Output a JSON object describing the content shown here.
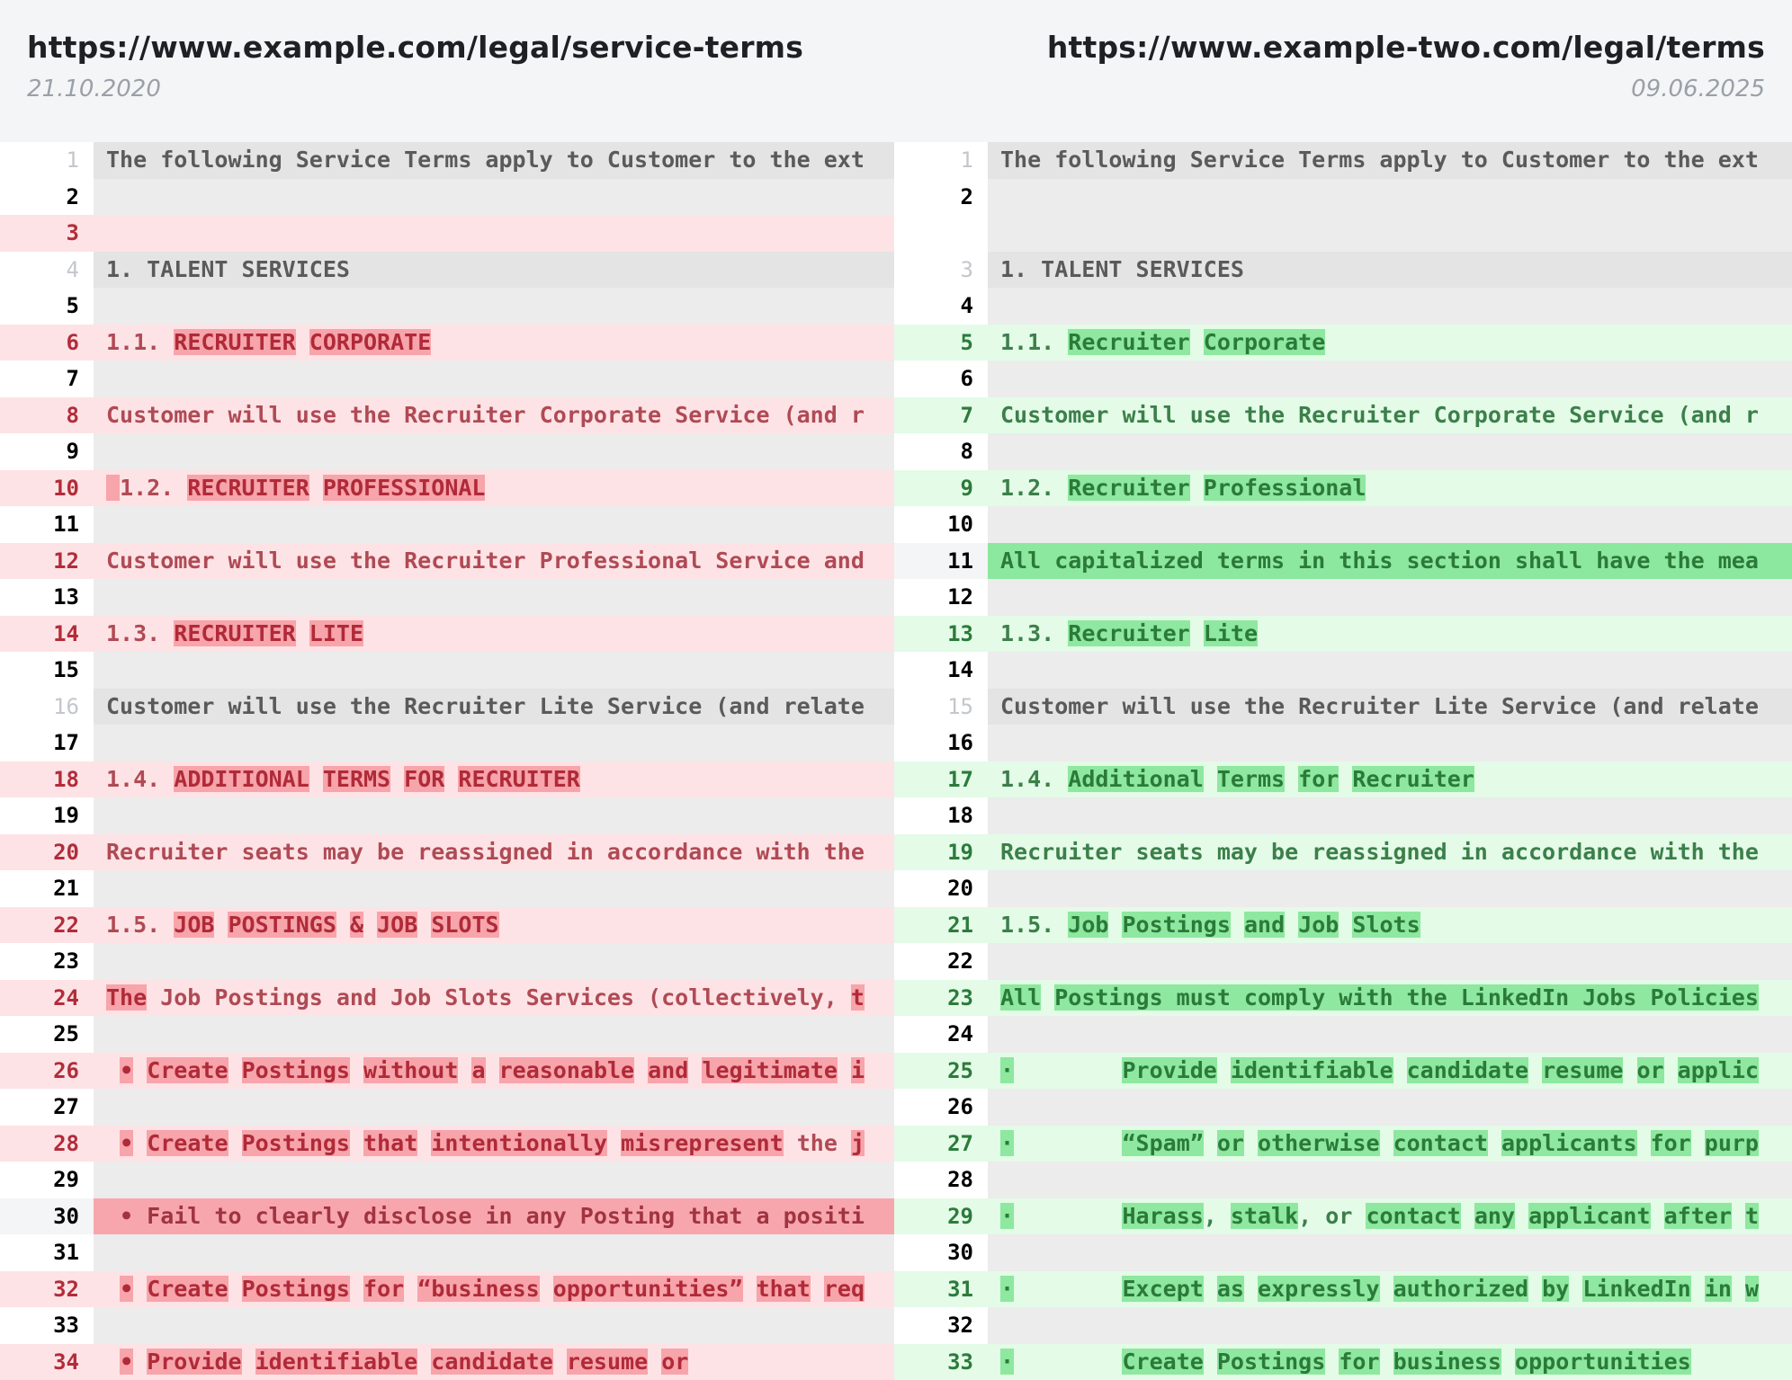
{
  "left": {
    "url": "https://www.example.com/legal/service-terms",
    "date": "21.10.2020",
    "rows": [
      {
        "n": "1",
        "kind": "same",
        "segs": [
          {
            "t": "The following Service Terms apply to Customer to the ext"
          }
        ]
      },
      {
        "n": "2",
        "kind": "empty",
        "segs": []
      },
      {
        "n": "3",
        "kind": "delempty",
        "segs": []
      },
      {
        "n": "4",
        "kind": "same",
        "segs": [
          {
            "t": "1. TALENT SERVICES"
          }
        ]
      },
      {
        "n": "5",
        "kind": "empty",
        "segs": []
      },
      {
        "n": "6",
        "kind": "del",
        "segs": [
          {
            "t": "1.1. "
          },
          {
            "t": "RECRUITER",
            "h": 1
          },
          {
            "t": " "
          },
          {
            "t": "CORPORATE",
            "h": 1
          }
        ]
      },
      {
        "n": "7",
        "kind": "empty",
        "segs": []
      },
      {
        "n": "8",
        "kind": "del",
        "segs": [
          {
            "t": "Customer will use the Recruiter Corporate Service (and r"
          }
        ]
      },
      {
        "n": "9",
        "kind": "empty",
        "segs": []
      },
      {
        "n": "10",
        "kind": "del",
        "segs": [
          {
            "t": " ",
            "h": 1
          },
          {
            "t": "1.2. "
          },
          {
            "t": "RECRUITER",
            "h": 1
          },
          {
            "t": " "
          },
          {
            "t": "PROFESSIONAL",
            "h": 1
          }
        ]
      },
      {
        "n": "11",
        "kind": "empty",
        "segs": []
      },
      {
        "n": "12",
        "kind": "del",
        "segs": [
          {
            "t": "Customer will use the Recruiter Professional Service and"
          }
        ]
      },
      {
        "n": "13",
        "kind": "empty",
        "segs": []
      },
      {
        "n": "14",
        "kind": "del",
        "segs": [
          {
            "t": "1.3. "
          },
          {
            "t": "RECRUITER",
            "h": 1
          },
          {
            "t": " "
          },
          {
            "t": "LITE",
            "h": 1
          }
        ]
      },
      {
        "n": "15",
        "kind": "empty",
        "segs": []
      },
      {
        "n": "16",
        "kind": "same",
        "segs": [
          {
            "t": "Customer will use the Recruiter Lite Service (and relate"
          }
        ]
      },
      {
        "n": "17",
        "kind": "empty",
        "segs": []
      },
      {
        "n": "18",
        "kind": "del",
        "segs": [
          {
            "t": "1.4. "
          },
          {
            "t": "ADDITIONAL",
            "h": 1
          },
          {
            "t": " "
          },
          {
            "t": "TERMS",
            "h": 1
          },
          {
            "t": " "
          },
          {
            "t": "FOR",
            "h": 1
          },
          {
            "t": " "
          },
          {
            "t": "RECRUITER",
            "h": 1
          }
        ]
      },
      {
        "n": "19",
        "kind": "empty",
        "segs": []
      },
      {
        "n": "20",
        "kind": "del",
        "segs": [
          {
            "t": "Recruiter seats may be reassigned in accordance with the"
          }
        ]
      },
      {
        "n": "21",
        "kind": "empty",
        "segs": []
      },
      {
        "n": "22",
        "kind": "del",
        "segs": [
          {
            "t": "1.5. "
          },
          {
            "t": "JOB",
            "h": 1
          },
          {
            "t": " "
          },
          {
            "t": "POSTINGS",
            "h": 1
          },
          {
            "t": " "
          },
          {
            "t": "&",
            "h": 1
          },
          {
            "t": " "
          },
          {
            "t": "JOB",
            "h": 1
          },
          {
            "t": " "
          },
          {
            "t": "SLOTS",
            "h": 1
          }
        ]
      },
      {
        "n": "23",
        "kind": "empty",
        "segs": []
      },
      {
        "n": "24",
        "kind": "del",
        "segs": [
          {
            "t": "The",
            "h": 1
          },
          {
            "t": " Job Postings and Job Slots Services (collectively, "
          },
          {
            "t": "t",
            "h": 1
          }
        ]
      },
      {
        "n": "25",
        "kind": "empty",
        "segs": []
      },
      {
        "n": "26",
        "kind": "del",
        "segs": [
          {
            "t": " "
          },
          {
            "t": "•",
            "h": 1
          },
          {
            "t": " "
          },
          {
            "t": "Create",
            "h": 1
          },
          {
            "t": " "
          },
          {
            "t": "Postings",
            "h": 1
          },
          {
            "t": " "
          },
          {
            "t": "without",
            "h": 1
          },
          {
            "t": " "
          },
          {
            "t": "a",
            "h": 1
          },
          {
            "t": " "
          },
          {
            "t": "reasonable",
            "h": 1
          },
          {
            "t": " "
          },
          {
            "t": "and",
            "h": 1
          },
          {
            "t": " "
          },
          {
            "t": "legitimate",
            "h": 1
          },
          {
            "t": " "
          },
          {
            "t": "i",
            "h": 1
          }
        ]
      },
      {
        "n": "27",
        "kind": "empty",
        "segs": []
      },
      {
        "n": "28",
        "kind": "del",
        "segs": [
          {
            "t": " "
          },
          {
            "t": "•",
            "h": 1
          },
          {
            "t": " "
          },
          {
            "t": "Create",
            "h": 1
          },
          {
            "t": " "
          },
          {
            "t": "Postings",
            "h": 1
          },
          {
            "t": " "
          },
          {
            "t": "that",
            "h": 1
          },
          {
            "t": " "
          },
          {
            "t": "intentionally",
            "h": 1
          },
          {
            "t": " "
          },
          {
            "t": "misrepresent",
            "h": 1
          },
          {
            "t": " the "
          },
          {
            "t": "j",
            "h": 1
          }
        ]
      },
      {
        "n": "29",
        "kind": "empty",
        "segs": []
      },
      {
        "n": "30",
        "kind": "delfull",
        "segs": [
          {
            "t": " • Fail to clearly disclose in any Posting that a positi"
          }
        ]
      },
      {
        "n": "31",
        "kind": "empty",
        "segs": []
      },
      {
        "n": "32",
        "kind": "del",
        "segs": [
          {
            "t": " "
          },
          {
            "t": "•",
            "h": 1
          },
          {
            "t": " "
          },
          {
            "t": "Create",
            "h": 1
          },
          {
            "t": " "
          },
          {
            "t": "Postings",
            "h": 1
          },
          {
            "t": " "
          },
          {
            "t": "for",
            "h": 1
          },
          {
            "t": " "
          },
          {
            "t": "“business",
            "h": 1
          },
          {
            "t": " "
          },
          {
            "t": "opportunities”",
            "h": 1
          },
          {
            "t": " "
          },
          {
            "t": "that",
            "h": 1
          },
          {
            "t": " "
          },
          {
            "t": "req",
            "h": 1
          }
        ]
      },
      {
        "n": "33",
        "kind": "empty",
        "segs": []
      },
      {
        "n": "34",
        "kind": "del",
        "segs": [
          {
            "t": " "
          },
          {
            "t": "•",
            "h": 1
          },
          {
            "t": " "
          },
          {
            "t": "Provide",
            "h": 1
          },
          {
            "t": " "
          },
          {
            "t": "identifiable",
            "h": 1
          },
          {
            "t": " "
          },
          {
            "t": "candidate",
            "h": 1
          },
          {
            "t": " "
          },
          {
            "t": "resume",
            "h": 1
          },
          {
            "t": " "
          },
          {
            "t": "or",
            "h": 1
          }
        ]
      }
    ]
  },
  "right": {
    "url": "https://www.example-two.com/legal/terms",
    "date": "09.06.2025",
    "rows": [
      {
        "n": "1",
        "kind": "same",
        "segs": [
          {
            "t": "The following Service Terms apply to Customer to the ext"
          }
        ]
      },
      {
        "n": "2",
        "kind": "empty",
        "segs": []
      },
      {
        "n": "",
        "kind": "empty",
        "segs": []
      },
      {
        "n": "3",
        "kind": "same",
        "segs": [
          {
            "t": "1. TALENT SERVICES"
          }
        ]
      },
      {
        "n": "4",
        "kind": "empty",
        "segs": []
      },
      {
        "n": "5",
        "kind": "add",
        "segs": [
          {
            "t": "1.1. "
          },
          {
            "t": "Recruiter",
            "h": 1
          },
          {
            "t": " "
          },
          {
            "t": "Corporate",
            "h": 1
          }
        ]
      },
      {
        "n": "6",
        "kind": "empty",
        "segs": []
      },
      {
        "n": "7",
        "kind": "add",
        "segs": [
          {
            "t": "Customer will use the Recruiter Corporate Service (and r"
          }
        ]
      },
      {
        "n": "8",
        "kind": "empty",
        "segs": []
      },
      {
        "n": "9",
        "kind": "add",
        "segs": [
          {
            "t": "1.2. "
          },
          {
            "t": "Recruiter",
            "h": 1
          },
          {
            "t": " "
          },
          {
            "t": "Professional",
            "h": 1
          }
        ]
      },
      {
        "n": "10",
        "kind": "empty",
        "segs": []
      },
      {
        "n": "11",
        "kind": "addfull",
        "segs": [
          {
            "t": "All capitalized terms in this section shall have the mea"
          }
        ]
      },
      {
        "n": "12",
        "kind": "empty",
        "segs": []
      },
      {
        "n": "13",
        "kind": "add",
        "segs": [
          {
            "t": "1.3. "
          },
          {
            "t": "Recruiter",
            "h": 1
          },
          {
            "t": " "
          },
          {
            "t": "Lite",
            "h": 1
          }
        ]
      },
      {
        "n": "14",
        "kind": "empty",
        "segs": []
      },
      {
        "n": "15",
        "kind": "same",
        "segs": [
          {
            "t": "Customer will use the Recruiter Lite Service (and relate"
          }
        ]
      },
      {
        "n": "16",
        "kind": "empty",
        "segs": []
      },
      {
        "n": "17",
        "kind": "add",
        "segs": [
          {
            "t": "1.4. "
          },
          {
            "t": "Additional",
            "h": 1
          },
          {
            "t": " "
          },
          {
            "t": "Terms",
            "h": 1
          },
          {
            "t": " "
          },
          {
            "t": "for",
            "h": 1
          },
          {
            "t": " "
          },
          {
            "t": "Recruiter",
            "h": 1
          }
        ]
      },
      {
        "n": "18",
        "kind": "empty",
        "segs": []
      },
      {
        "n": "19",
        "kind": "add",
        "segs": [
          {
            "t": "Recruiter seats may be reassigned in accordance with the"
          }
        ]
      },
      {
        "n": "20",
        "kind": "empty",
        "segs": []
      },
      {
        "n": "21",
        "kind": "add",
        "segs": [
          {
            "t": "1.5. "
          },
          {
            "t": "Job",
            "h": 1
          },
          {
            "t": " "
          },
          {
            "t": "Postings",
            "h": 1
          },
          {
            "t": " "
          },
          {
            "t": "and",
            "h": 1
          },
          {
            "t": " "
          },
          {
            "t": "Job",
            "h": 1
          },
          {
            "t": " "
          },
          {
            "t": "Slots",
            "h": 1
          }
        ]
      },
      {
        "n": "22",
        "kind": "empty",
        "segs": []
      },
      {
        "n": "23",
        "kind": "add",
        "segs": [
          {
            "t": "All",
            "h": 1
          },
          {
            "t": " "
          },
          {
            "t": "Postings must comply with the LinkedIn Jobs Policies",
            "h": 1
          }
        ]
      },
      {
        "n": "24",
        "kind": "empty",
        "segs": []
      },
      {
        "n": "25",
        "kind": "add",
        "segs": [
          {
            "t": "·",
            "h": 1
          },
          {
            "t": "        "
          },
          {
            "t": "Provide",
            "h": 1
          },
          {
            "t": " "
          },
          {
            "t": "identifiable",
            "h": 1
          },
          {
            "t": " "
          },
          {
            "t": "candidate",
            "h": 1
          },
          {
            "t": " "
          },
          {
            "t": "resume",
            "h": 1
          },
          {
            "t": " "
          },
          {
            "t": "or",
            "h": 1
          },
          {
            "t": " "
          },
          {
            "t": "applic",
            "h": 1
          }
        ]
      },
      {
        "n": "26",
        "kind": "empty",
        "segs": []
      },
      {
        "n": "27",
        "kind": "add",
        "segs": [
          {
            "t": "·",
            "h": 1
          },
          {
            "t": "        "
          },
          {
            "t": "“Spam”",
            "h": 1
          },
          {
            "t": " "
          },
          {
            "t": "or",
            "h": 1
          },
          {
            "t": " "
          },
          {
            "t": "otherwise",
            "h": 1
          },
          {
            "t": " "
          },
          {
            "t": "contact",
            "h": 1
          },
          {
            "t": " "
          },
          {
            "t": "applicants",
            "h": 1
          },
          {
            "t": " "
          },
          {
            "t": "for",
            "h": 1
          },
          {
            "t": " "
          },
          {
            "t": "purp",
            "h": 1
          }
        ]
      },
      {
        "n": "28",
        "kind": "empty",
        "segs": []
      },
      {
        "n": "29",
        "kind": "add",
        "segs": [
          {
            "t": "·",
            "h": 1
          },
          {
            "t": "        "
          },
          {
            "t": "Harass",
            "h": 1
          },
          {
            "t": ", "
          },
          {
            "t": "stalk",
            "h": 1
          },
          {
            "t": ", or "
          },
          {
            "t": "contact",
            "h": 1
          },
          {
            "t": " "
          },
          {
            "t": "any",
            "h": 1
          },
          {
            "t": " "
          },
          {
            "t": "applicant",
            "h": 1
          },
          {
            "t": " "
          },
          {
            "t": "after",
            "h": 1
          },
          {
            "t": " "
          },
          {
            "t": "t",
            "h": 1
          }
        ]
      },
      {
        "n": "30",
        "kind": "empty",
        "segs": []
      },
      {
        "n": "31",
        "kind": "add",
        "segs": [
          {
            "t": "·",
            "h": 1
          },
          {
            "t": "        "
          },
          {
            "t": "Except",
            "h": 1
          },
          {
            "t": " "
          },
          {
            "t": "as",
            "h": 1
          },
          {
            "t": " "
          },
          {
            "t": "expressly",
            "h": 1
          },
          {
            "t": " "
          },
          {
            "t": "authorized",
            "h": 1
          },
          {
            "t": " "
          },
          {
            "t": "by",
            "h": 1
          },
          {
            "t": " "
          },
          {
            "t": "LinkedIn",
            "h": 1
          },
          {
            "t": " "
          },
          {
            "t": "in",
            "h": 1
          },
          {
            "t": " "
          },
          {
            "t": "w",
            "h": 1
          }
        ]
      },
      {
        "n": "32",
        "kind": "empty",
        "segs": []
      },
      {
        "n": "33",
        "kind": "add",
        "segs": [
          {
            "t": "·",
            "h": 1
          },
          {
            "t": "        "
          },
          {
            "t": "Create",
            "h": 1
          },
          {
            "t": " "
          },
          {
            "t": "Postings",
            "h": 1
          },
          {
            "t": " "
          },
          {
            "t": "for",
            "h": 1
          },
          {
            "t": " "
          },
          {
            "t": "business",
            "h": 1
          },
          {
            "t": " "
          },
          {
            "t": "opportunities",
            "h": 1
          }
        ]
      }
    ]
  }
}
